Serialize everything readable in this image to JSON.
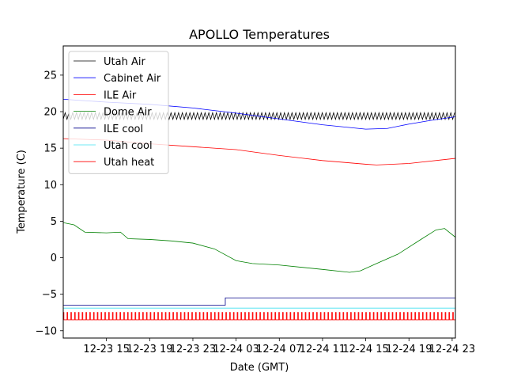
{
  "chart_data": {
    "type": "line",
    "title": "APOLLO Temperatures",
    "xlabel": "Date (GMT)",
    "ylabel": "Temperature (C)",
    "xlim": [
      11.0,
      47.3
    ],
    "ylim": [
      -11,
      29
    ],
    "grid": false,
    "legend_position": "top-left",
    "x_unit": "hours since 12-23 00:00 GMT",
    "x_ticks": [
      {
        "x": 15,
        "label": "12-23 15"
      },
      {
        "x": 19,
        "label": "12-23 19"
      },
      {
        "x": 23,
        "label": "12-23 23"
      },
      {
        "x": 27,
        "label": "12-24 03"
      },
      {
        "x": 31,
        "label": "12-24 07"
      },
      {
        "x": 35,
        "label": "12-24 11"
      },
      {
        "x": 39,
        "label": "12-24 15"
      },
      {
        "x": 43,
        "label": "12-24 19"
      },
      {
        "x": 47,
        "label": "12-24 23"
      }
    ],
    "y_ticks": [
      -10,
      -5,
      0,
      5,
      10,
      15,
      20,
      25
    ],
    "series": [
      {
        "name": "Utah Air",
        "color": "#000000",
        "style": "oscillating",
        "amplitude": 0.45,
        "period_hours": 0.35,
        "points": [
          [
            11.0,
            19.4
          ],
          [
            20.0,
            19.4
          ],
          [
            30.0,
            19.4
          ],
          [
            40.0,
            19.4
          ],
          [
            47.3,
            19.4
          ]
        ]
      },
      {
        "name": "Cabinet Air",
        "color": "#0000ff",
        "style": "line",
        "points": [
          [
            11.0,
            21.7
          ],
          [
            15.0,
            21.3
          ],
          [
            19.0,
            21.0
          ],
          [
            23.0,
            20.5
          ],
          [
            27.0,
            19.8
          ],
          [
            31.0,
            19.0
          ],
          [
            35.0,
            18.2
          ],
          [
            39.0,
            17.6
          ],
          [
            41.0,
            17.7
          ],
          [
            43.0,
            18.3
          ],
          [
            45.0,
            18.8
          ],
          [
            47.3,
            19.3
          ]
        ]
      },
      {
        "name": "ILE Air",
        "color": "#ff0000",
        "style": "line",
        "points": [
          [
            11.0,
            16.3
          ],
          [
            15.0,
            16.1
          ],
          [
            19.0,
            15.6
          ],
          [
            23.0,
            15.2
          ],
          [
            27.0,
            14.8
          ],
          [
            31.0,
            14.0
          ],
          [
            35.0,
            13.3
          ],
          [
            39.0,
            12.8
          ],
          [
            40.0,
            12.7
          ],
          [
            43.0,
            12.9
          ],
          [
            47.3,
            13.6
          ]
        ]
      },
      {
        "name": "Dome Air",
        "color": "#008000",
        "style": "line",
        "points": [
          [
            11.0,
            4.8
          ],
          [
            12.0,
            4.5
          ],
          [
            13.0,
            3.5
          ],
          [
            15.0,
            3.4
          ],
          [
            16.3,
            3.5
          ],
          [
            17.0,
            2.6
          ],
          [
            19.0,
            2.5
          ],
          [
            21.0,
            2.3
          ],
          [
            23.0,
            2.0
          ],
          [
            25.0,
            1.2
          ],
          [
            27.0,
            -0.4
          ],
          [
            28.5,
            -0.8
          ],
          [
            31.0,
            -1.0
          ],
          [
            35.0,
            -1.6
          ],
          [
            37.5,
            -2.0
          ],
          [
            38.5,
            -1.8
          ],
          [
            40.0,
            -0.8
          ],
          [
            42.0,
            0.5
          ],
          [
            44.0,
            2.4
          ],
          [
            45.5,
            3.8
          ],
          [
            46.3,
            4.0
          ],
          [
            47.3,
            2.8
          ]
        ]
      },
      {
        "name": "ILE cool",
        "color": "#00008b",
        "style": "step",
        "points": [
          [
            11.0,
            -6.5
          ],
          [
            26.0,
            -6.5
          ],
          [
            26.0,
            -5.5
          ],
          [
            47.3,
            -5.5
          ]
        ]
      },
      {
        "name": "Utah cool",
        "color": "#40e0f0",
        "style": "line",
        "points": [
          [
            11.0,
            -6.9
          ],
          [
            47.3,
            -6.9
          ]
        ]
      },
      {
        "name": "Utah heat",
        "color": "#ff0000",
        "style": "pulse",
        "low": -8.5,
        "high": -7.5,
        "period_hours": 0.35,
        "points": [
          [
            11.0,
            -8.0
          ],
          [
            47.3,
            -8.0
          ]
        ]
      }
    ]
  }
}
